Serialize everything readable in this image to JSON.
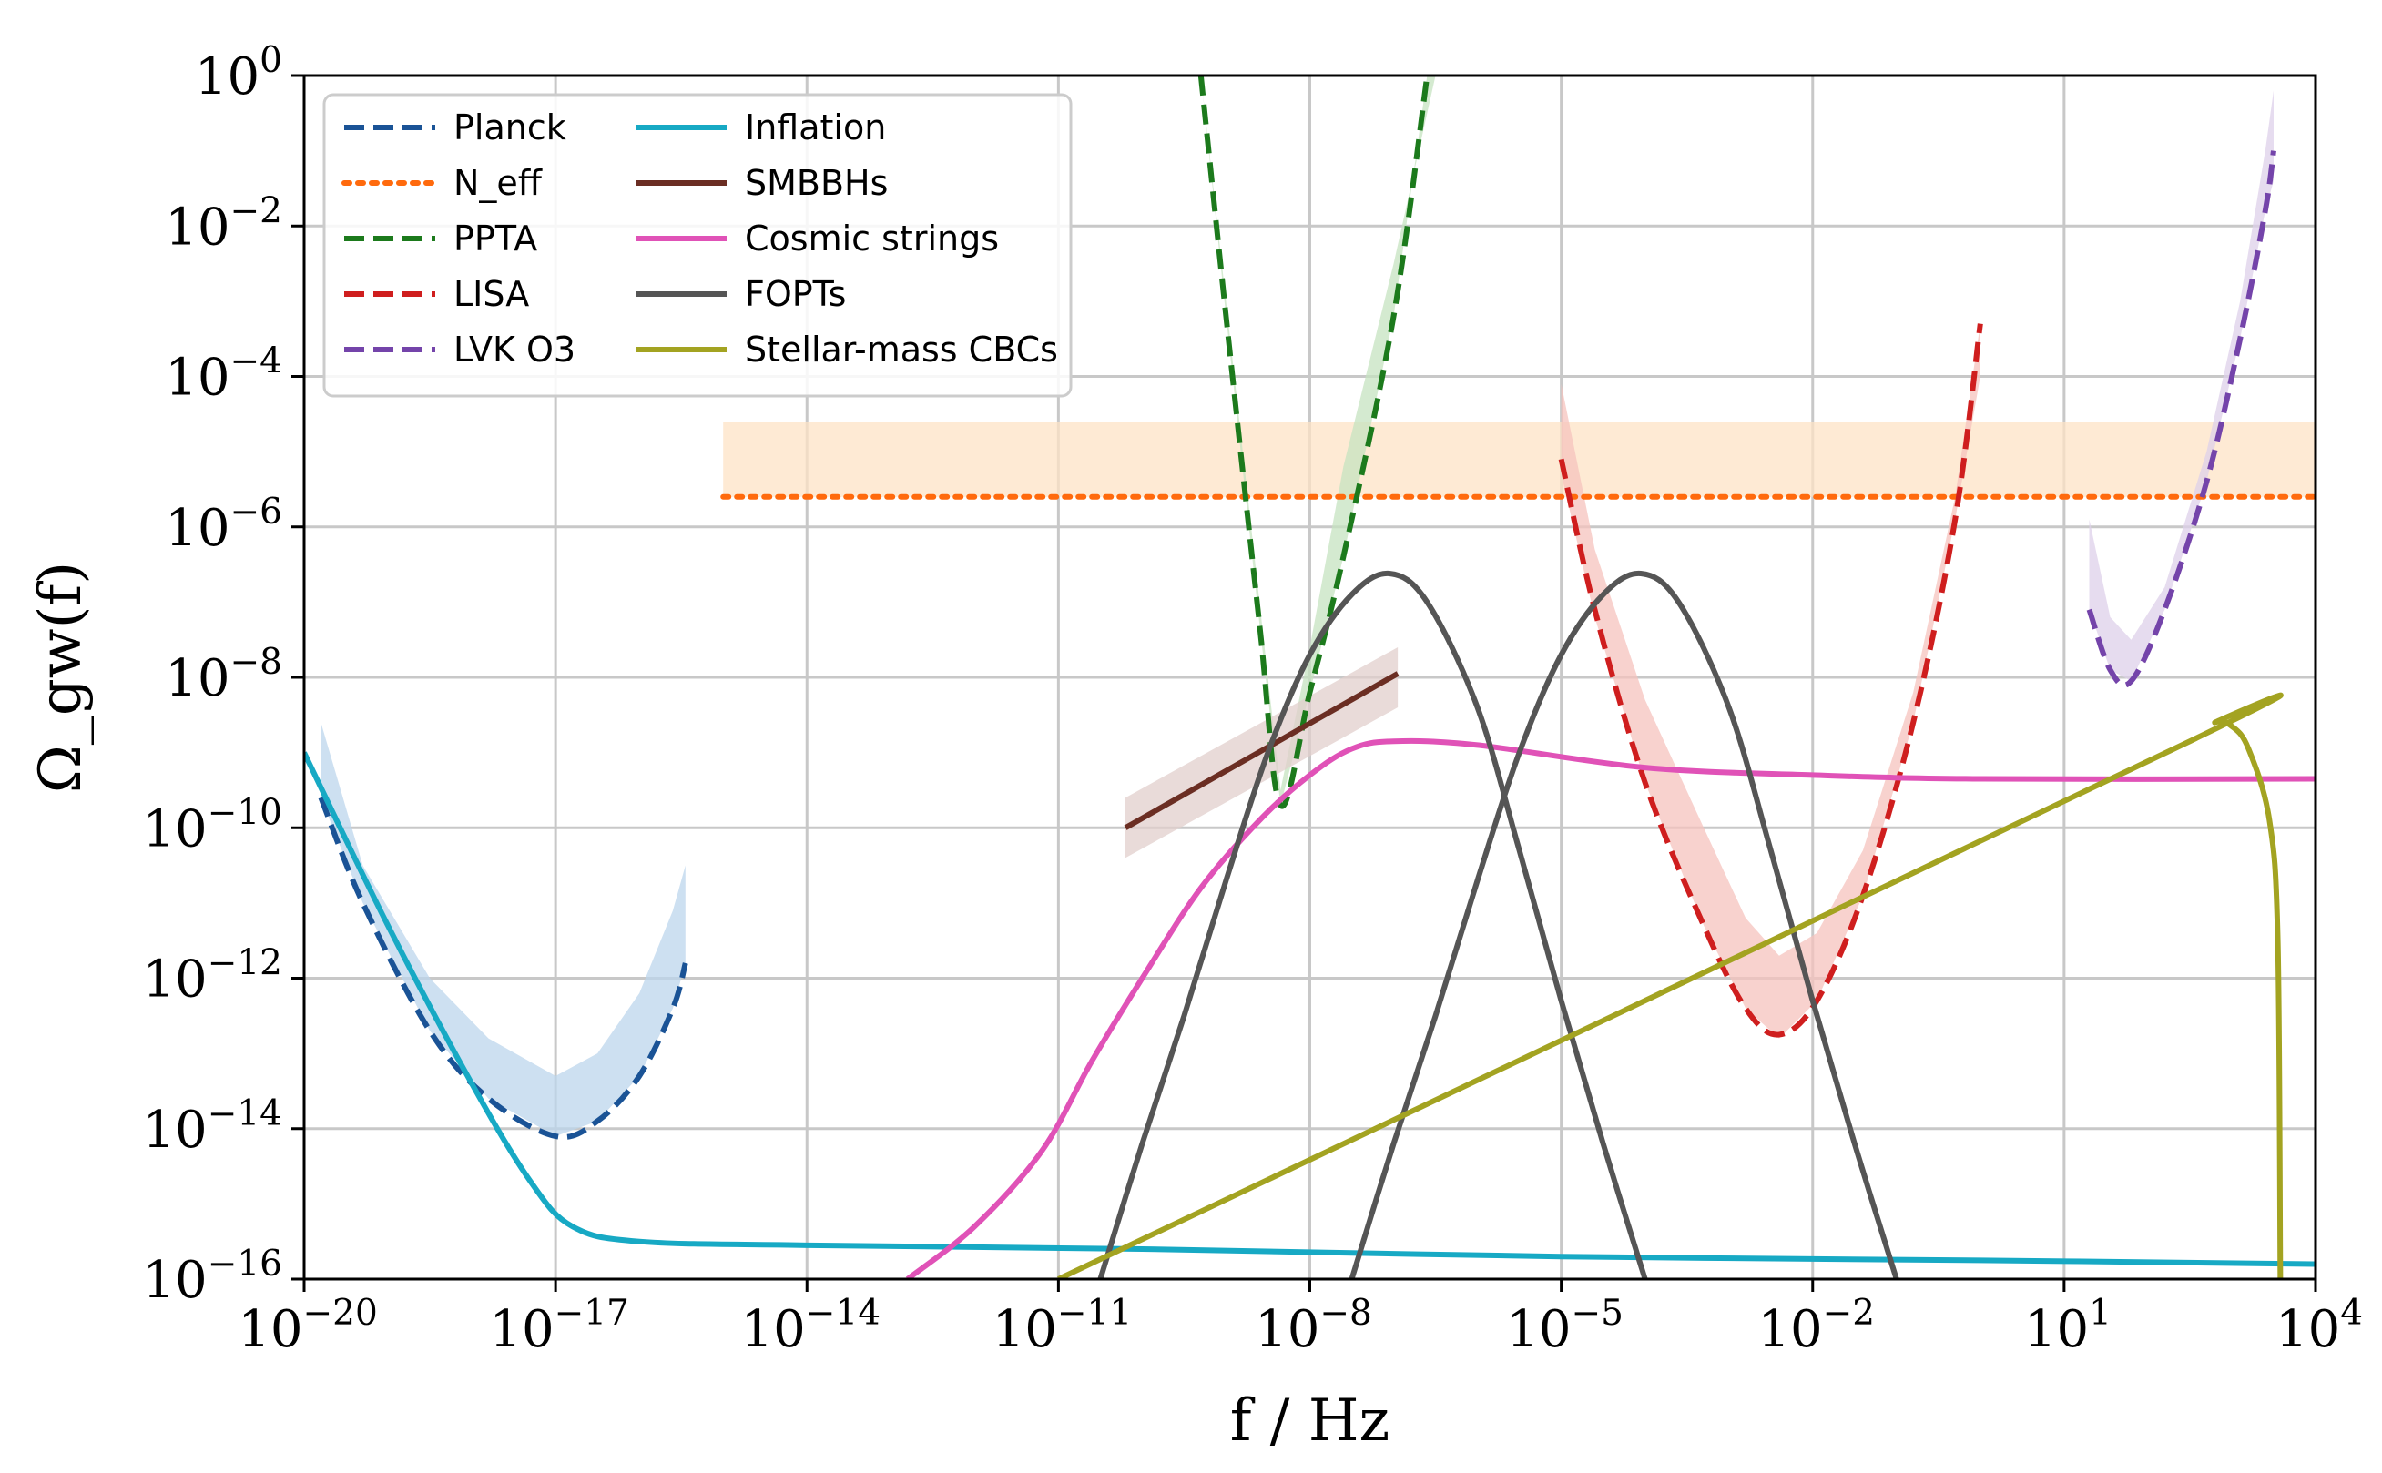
{
  "chart_data": {
    "type": "line",
    "title": "",
    "xlabel": "f / Hz",
    "ylabel": "Ω_gw(f)",
    "xscale": "log",
    "yscale": "log",
    "xlim_exp": [
      -20,
      4
    ],
    "ylim_exp": [
      -16,
      0
    ],
    "grid": true,
    "legend_location": "upper-left",
    "x_ticks": [
      {
        "base": "10",
        "exp": "−20",
        "value": -20
      },
      {
        "base": "10",
        "exp": "−17",
        "value": -17
      },
      {
        "base": "10",
        "exp": "−14",
        "value": -14
      },
      {
        "base": "10",
        "exp": "−11",
        "value": -11
      },
      {
        "base": "10",
        "exp": "−8",
        "value": -8
      },
      {
        "base": "10",
        "exp": "−5",
        "value": -5
      },
      {
        "base": "10",
        "exp": "−2",
        "value": -2
      },
      {
        "base": "10",
        "exp": "1",
        "value": 1
      },
      {
        "base": "10",
        "exp": "4",
        "value": 4
      }
    ],
    "y_ticks": [
      {
        "base": "10",
        "exp": "0",
        "value": 0
      },
      {
        "base": "10",
        "exp": "−2",
        "value": -2
      },
      {
        "base": "10",
        "exp": "−4",
        "value": -4
      },
      {
        "base": "10",
        "exp": "−6",
        "value": -6
      },
      {
        "base": "10",
        "exp": "−8",
        "value": -8
      },
      {
        "base": "10",
        "exp": "−10",
        "value": -10
      },
      {
        "base": "10",
        "exp": "−12",
        "value": -12
      },
      {
        "base": "10",
        "exp": "−14",
        "value": -14
      },
      {
        "base": "10",
        "exp": "−16",
        "value": -16
      }
    ],
    "bands": [
      {
        "name": "Planck-band",
        "color": "#bcd6ec",
        "upper": [
          [
            -19.8,
            -8.6
          ],
          [
            -19.3,
            -10.5
          ],
          [
            -18.5,
            -12.0
          ],
          [
            -17.8,
            -12.8
          ],
          [
            -17.0,
            -13.3
          ],
          [
            -16.5,
            -13.0
          ],
          [
            -16.0,
            -12.2
          ],
          [
            -15.6,
            -11.1
          ],
          [
            -15.45,
            -10.5
          ]
        ],
        "lower": [
          [
            -19.8,
            -9.6
          ],
          [
            -19.3,
            -11.0
          ],
          [
            -18.5,
            -12.7
          ],
          [
            -17.8,
            -13.6
          ],
          [
            -17.0,
            -14.1
          ],
          [
            -16.5,
            -13.9
          ],
          [
            -16.0,
            -13.3
          ],
          [
            -15.6,
            -12.4
          ],
          [
            -15.45,
            -11.8
          ]
        ]
      },
      {
        "name": "Neff-band",
        "color": "#fde3c5",
        "upper": [
          [
            -15.0,
            -4.6
          ],
          [
            4.0,
            -4.6
          ]
        ],
        "lower": [
          [
            -15.0,
            -5.6
          ],
          [
            4.0,
            -5.6
          ]
        ]
      },
      {
        "name": "PPTA-band",
        "color": "#c6e3c0",
        "upper": [
          [
            -9.3,
            0.0
          ],
          [
            -9.0,
            -3.0
          ],
          [
            -8.6,
            -7.0
          ],
          [
            -8.35,
            -9.5
          ],
          [
            -8.0,
            -7.6
          ],
          [
            -7.6,
            -5.2
          ],
          [
            -7.0,
            -2.5
          ],
          [
            -6.5,
            0.0
          ]
        ],
        "lower": [
          [
            -9.3,
            0.0
          ],
          [
            -9.0,
            -3.2
          ],
          [
            -8.6,
            -7.3
          ],
          [
            -8.35,
            -9.7
          ],
          [
            -8.0,
            -8.2
          ],
          [
            -7.6,
            -6.4
          ],
          [
            -7.0,
            -3.2
          ],
          [
            -6.6,
            0.0
          ]
        ]
      },
      {
        "name": "SMBBH-band",
        "color": "#e2cfcc",
        "upper": [
          [
            -10.2,
            -9.6
          ],
          [
            -6.95,
            -7.6
          ]
        ],
        "lower": [
          [
            -10.2,
            -10.4
          ],
          [
            -6.95,
            -8.4
          ]
        ]
      },
      {
        "name": "LISA-band",
        "color": "#f6c3bd",
        "upper": [
          [
            -5.0,
            -4.1
          ],
          [
            -4.6,
            -6.3
          ],
          [
            -4.0,
            -8.3
          ],
          [
            -3.3,
            -10.0
          ],
          [
            -2.8,
            -11.2
          ],
          [
            -2.4,
            -11.7
          ],
          [
            -1.95,
            -11.4
          ],
          [
            -1.4,
            -10.3
          ],
          [
            -0.8,
            -8.2
          ],
          [
            -0.3,
            -5.6
          ],
          [
            0.0,
            -3.3
          ]
        ],
        "lower": [
          [
            -5.0,
            -5.3
          ],
          [
            -4.6,
            -7.2
          ],
          [
            -4.0,
            -9.4
          ],
          [
            -3.3,
            -11.3
          ],
          [
            -2.8,
            -12.4
          ],
          [
            -2.4,
            -12.8
          ],
          [
            -1.95,
            -12.3
          ],
          [
            -1.4,
            -10.9
          ],
          [
            -0.8,
            -8.6
          ],
          [
            -0.3,
            -5.9
          ],
          [
            0.0,
            -4.0
          ]
        ]
      },
      {
        "name": "LVK-band",
        "color": "#ddd0ea",
        "upper": [
          [
            1.3,
            -5.9
          ],
          [
            1.55,
            -7.2
          ],
          [
            1.8,
            -7.5
          ],
          [
            2.2,
            -6.8
          ],
          [
            2.7,
            -5.0
          ],
          [
            3.1,
            -3.0
          ],
          [
            3.4,
            -1.0
          ],
          [
            3.5,
            -0.2
          ]
        ],
        "lower": [
          [
            1.3,
            -7.1
          ],
          [
            1.55,
            -7.9
          ],
          [
            1.8,
            -8.05
          ],
          [
            2.2,
            -7.1
          ],
          [
            2.7,
            -5.4
          ],
          [
            3.1,
            -3.5
          ],
          [
            3.4,
            -1.8
          ],
          [
            3.5,
            -1.4
          ]
        ]
      }
    ],
    "series": [
      {
        "name": "Planck",
        "color": "#1a5396",
        "dash": "dashed",
        "legend": true,
        "points": [
          [
            -19.8,
            -9.6
          ],
          [
            -19.3,
            -11.0
          ],
          [
            -18.5,
            -12.7
          ],
          [
            -17.8,
            -13.6
          ],
          [
            -17.0,
            -14.1
          ],
          [
            -16.5,
            -13.9
          ],
          [
            -16.0,
            -13.3
          ],
          [
            -15.6,
            -12.4
          ],
          [
            -15.45,
            -11.8
          ]
        ]
      },
      {
        "name": "N_eff",
        "color": "#ff6a0d",
        "dash": "dotted",
        "legend": true,
        "points": [
          [
            -15.0,
            -5.6
          ],
          [
            4.0,
            -5.6
          ]
        ]
      },
      {
        "name": "PPTA",
        "color": "#1c7a1c",
        "dash": "dashed",
        "legend": true,
        "points": [
          [
            -9.3,
            0.0
          ],
          [
            -9.0,
            -3.2
          ],
          [
            -8.6,
            -7.3
          ],
          [
            -8.35,
            -9.7
          ],
          [
            -8.0,
            -8.2
          ],
          [
            -7.6,
            -6.4
          ],
          [
            -7.0,
            -3.2
          ],
          [
            -6.6,
            0.0
          ]
        ]
      },
      {
        "name": "LISA",
        "color": "#cf1e1e",
        "dash": "dashed",
        "legend": true,
        "points": [
          [
            -5.0,
            -5.1
          ],
          [
            -4.6,
            -7.1
          ],
          [
            -4.0,
            -9.4
          ],
          [
            -3.3,
            -11.3
          ],
          [
            -2.8,
            -12.4
          ],
          [
            -2.4,
            -12.75
          ],
          [
            -1.95,
            -12.3
          ],
          [
            -1.4,
            -10.9
          ],
          [
            -0.8,
            -8.6
          ],
          [
            -0.3,
            -5.9
          ],
          [
            0.0,
            -3.3
          ]
        ]
      },
      {
        "name": "LVK O3",
        "color": "#7444aa",
        "dash": "dashed",
        "legend": true,
        "points": [
          [
            1.3,
            -7.1
          ],
          [
            1.55,
            -7.9
          ],
          [
            1.8,
            -8.05
          ],
          [
            2.2,
            -7.1
          ],
          [
            2.7,
            -5.4
          ],
          [
            3.1,
            -3.5
          ],
          [
            3.4,
            -1.8
          ],
          [
            3.5,
            -1.0
          ]
        ]
      },
      {
        "name": "Inflation",
        "color": "#17a9c4",
        "dash": "solid",
        "legend": true,
        "points": [
          [
            -20.0,
            -9.0
          ],
          [
            -19.0,
            -11.3
          ],
          [
            -18.0,
            -13.4
          ],
          [
            -17.3,
            -14.7
          ],
          [
            -16.8,
            -15.3
          ],
          [
            -16.0,
            -15.5
          ],
          [
            -14.0,
            -15.55
          ],
          [
            -10.0,
            -15.6
          ],
          [
            -5.0,
            -15.7
          ],
          [
            0.0,
            -15.75
          ],
          [
            4.0,
            -15.8
          ]
        ]
      },
      {
        "name": "SMBBHs",
        "color": "#6b2e23",
        "dash": "solid",
        "legend": true,
        "points": [
          [
            -10.2,
            -10.0
          ],
          [
            -6.95,
            -7.95
          ]
        ]
      },
      {
        "name": "Cosmic strings",
        "color": "#e052b7",
        "dash": "solid",
        "legend": true,
        "points": [
          [
            -12.8,
            -16.0
          ],
          [
            -12.0,
            -15.3
          ],
          [
            -11.2,
            -14.3
          ],
          [
            -10.6,
            -13.1
          ],
          [
            -10.0,
            -12.0
          ],
          [
            -9.3,
            -10.8
          ],
          [
            -8.6,
            -9.9
          ],
          [
            -8.0,
            -9.3
          ],
          [
            -7.5,
            -8.95
          ],
          [
            -7.0,
            -8.85
          ],
          [
            -6.0,
            -8.9
          ],
          [
            -4.0,
            -9.2
          ],
          [
            -2.0,
            -9.3
          ],
          [
            0.0,
            -9.35
          ],
          [
            4.0,
            -9.35
          ]
        ]
      },
      {
        "name": "FOPTs",
        "color": "#555555",
        "dash": "solid",
        "legend": true,
        "points": [
          [
            -10.5,
            -16.0
          ],
          [
            -10.0,
            -14.2
          ],
          [
            -9.5,
            -12.5
          ],
          [
            -9.0,
            -10.7
          ],
          [
            -8.5,
            -9.0
          ],
          [
            -8.0,
            -7.7
          ],
          [
            -7.5,
            -6.9
          ],
          [
            -7.05,
            -6.62
          ],
          [
            -6.6,
            -7.0
          ],
          [
            -6.0,
            -8.4
          ],
          [
            -5.5,
            -10.3
          ],
          [
            -5.0,
            -12.3
          ],
          [
            -4.5,
            -14.2
          ],
          [
            -4.0,
            -16.0
          ]
        ]
      },
      {
        "name": "FOPTs-2",
        "color": "#555555",
        "dash": "solid",
        "legend": false,
        "points": [
          [
            -7.5,
            -16.0
          ],
          [
            -7.0,
            -14.2
          ],
          [
            -6.5,
            -12.5
          ],
          [
            -6.0,
            -10.7
          ],
          [
            -5.5,
            -9.0
          ],
          [
            -5.0,
            -7.7
          ],
          [
            -4.5,
            -6.9
          ],
          [
            -4.05,
            -6.62
          ],
          [
            -3.6,
            -7.0
          ],
          [
            -3.0,
            -8.4
          ],
          [
            -2.5,
            -10.3
          ],
          [
            -2.0,
            -12.3
          ],
          [
            -1.5,
            -14.2
          ],
          [
            -1.0,
            -16.0
          ]
        ]
      },
      {
        "name": "Stellar-mass CBCs",
        "color": "#a3a321",
        "dash": "solid",
        "legend": true,
        "points": [
          [
            -11.0,
            -16.0
          ],
          [
            2.5,
            -8.85
          ],
          [
            2.8,
            -8.6
          ],
          [
            3.0,
            -8.65
          ],
          [
            3.2,
            -8.95
          ],
          [
            3.45,
            -9.9
          ],
          [
            3.55,
            -11.5
          ],
          [
            3.58,
            -16.0
          ]
        ]
      }
    ]
  }
}
